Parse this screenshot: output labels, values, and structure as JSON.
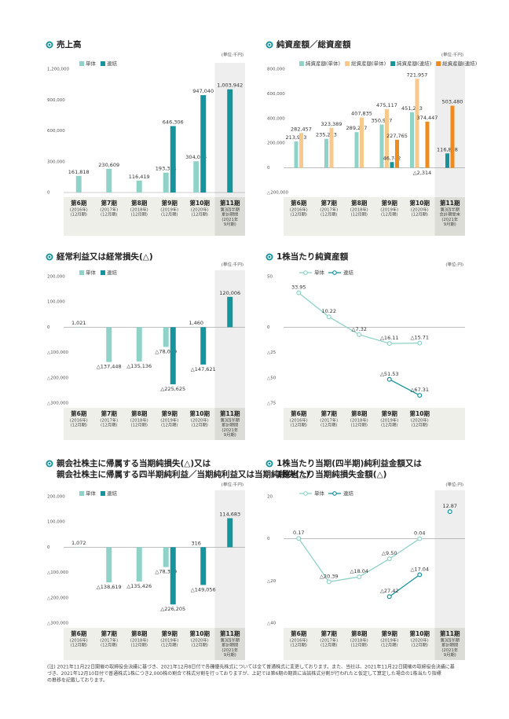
{
  "chart_data": [
    {
      "type": "bar",
      "title": [
        "売上高"
      ],
      "unit": "(単位:千円)",
      "categories": [
        "第6期",
        "第7期",
        "第8期",
        "第9期",
        "第10期",
        "第11期"
      ],
      "category_notes": [
        [
          "(2016年)",
          "(12月期)"
        ],
        [
          "(2017年)",
          "(12月期)"
        ],
        [
          "(2018年)",
          "(12月期)"
        ],
        [
          "(2019年)",
          "(12月期)"
        ],
        [
          "(2020年)",
          "(12月期)"
        ],
        [
          "第3四半期",
          "累計期間",
          "(2021年",
          "9月期)"
        ]
      ],
      "series": [
        {
          "name": "単体",
          "color": "#8fd3c8",
          "values": [
            161818,
            230609,
            116419,
            193354,
            304064,
            null
          ],
          "value_labels": [
            "161,818",
            "230,609",
            "116,419",
            "193,354",
            "304,064",
            null
          ]
        },
        {
          "name": "連結",
          "color": "#17939b",
          "values": [
            null,
            null,
            null,
            646306,
            947040,
            1003942
          ],
          "value_labels": [
            null,
            null,
            null,
            "646,306",
            "947,040",
            "1,003,942"
          ]
        }
      ],
      "ylim": [
        0,
        1200000
      ],
      "yticks": [
        0,
        {
          "value": 300000,
          "label": "300,000"
        },
        {
          "value": 600000,
          "label": "600,000"
        },
        {
          "value": 900000,
          "label": "900,000"
        },
        {
          "value": 1200000,
          "label": "1,200,000"
        }
      ]
    },
    {
      "type": "bar",
      "title": [
        "純資産額／総資産額"
      ],
      "unit": "(単位:千円)",
      "categories": [
        "第6期",
        "第7期",
        "第8期",
        "第9期",
        "第10期",
        "第11期"
      ],
      "category_notes": [
        [
          "(2016年)",
          "(12月期)"
        ],
        [
          "(2017年)",
          "(12月期)"
        ],
        [
          "(2018年)",
          "(12月期)"
        ],
        [
          "(2019年)",
          "(12月期)"
        ],
        [
          "(2020年)",
          "(12月期)"
        ],
        [
          "第3四半期",
          "会計期間末",
          "(2021年",
          "9月期)"
        ]
      ],
      "series": [
        {
          "name": "純資産額(単体)",
          "color": "#8fd3c8",
          "values": [
            213953,
            235233,
            289257,
            350937,
            451253,
            null
          ],
          "value_labels": [
            "213,953",
            "235,233",
            "289,257",
            "350,937",
            "451,253",
            null
          ]
        },
        {
          "name": "総資産額(単体)",
          "color": "#f7c98c",
          "values": [
            282457,
            323389,
            407835,
            475117,
            721957,
            null
          ],
          "value_labels": [
            "282,457",
            "323,389",
            "407,835",
            "475,117",
            "721,957",
            null
          ]
        },
        {
          "name": "純資産額(連結)",
          "color": "#17939b",
          "values": [
            null,
            null,
            null,
            46742,
            -2314,
            116868
          ],
          "value_labels": [
            null,
            null,
            null,
            "46,742",
            "△2,314",
            "116,868"
          ]
        },
        {
          "name": "総資産額(連結)",
          "color": "#ef8a1d",
          "values": [
            null,
            null,
            null,
            227765,
            374447,
            503480
          ],
          "value_labels": [
            null,
            null,
            null,
            "227,765",
            "374,447",
            "503,480"
          ]
        }
      ],
      "ylim": [
        -200000,
        800000
      ],
      "yticks": [
        {
          "value": -200000,
          "label": "△200,000"
        },
        0,
        {
          "value": 200000,
          "label": "200,000"
        },
        {
          "value": 400000,
          "label": "400,000"
        },
        {
          "value": 600000,
          "label": "600,000"
        },
        {
          "value": 800000,
          "label": "800,000"
        }
      ]
    },
    {
      "type": "bar",
      "title": [
        "経常利益又は経常損失(△)"
      ],
      "unit": "(単位:千円)",
      "categories": [
        "第6期",
        "第7期",
        "第8期",
        "第9期",
        "第10期",
        "第11期"
      ],
      "category_notes": [
        [
          "(2016年)",
          "(12月期)"
        ],
        [
          "(2017年)",
          "(12月期)"
        ],
        [
          "(2018年)",
          "(12月期)"
        ],
        [
          "(2019年)",
          "(12月期)"
        ],
        [
          "(2020年)",
          "(12月期)"
        ],
        [
          "第3四半期",
          "累計期間",
          "(2021年",
          "9月期)"
        ]
      ],
      "series": [
        {
          "name": "単体",
          "color": "#8fd3c8",
          "values": [
            1021,
            -137448,
            -135136,
            -78079,
            1460,
            null
          ],
          "value_labels": [
            "1,021",
            "△137,448",
            "△135,136",
            "△78,079",
            "1,460",
            null
          ]
        },
        {
          "name": "連結",
          "color": "#17939b",
          "values": [
            null,
            null,
            null,
            -225625,
            -147621,
            120006
          ],
          "value_labels": [
            null,
            null,
            null,
            "△225,625",
            "△147,621",
            "120,006"
          ]
        }
      ],
      "ylim": [
        -300000,
        200000
      ],
      "yticks": [
        {
          "value": -300000,
          "label": "△300,000"
        },
        {
          "value": -200000,
          "label": "△200,000"
        },
        {
          "value": -100000,
          "label": "△100,000"
        },
        0,
        {
          "value": 100000,
          "label": "100,000"
        },
        {
          "value": 200000,
          "label": "200,000"
        }
      ]
    },
    {
      "type": "line",
      "title": [
        "1株当たり純資産額"
      ],
      "unit": "(単位:円)",
      "categories": [
        "第6期",
        "第7期",
        "第8期",
        "第9期",
        "第10期"
      ],
      "category_notes": [
        [
          "(2016年)",
          "(12月期)"
        ],
        [
          "(2017年)",
          "(12月期)"
        ],
        [
          "(2018年)",
          "(12月期)"
        ],
        [
          "(2019年)",
          "(12月期)"
        ],
        [
          "(2020年)",
          "(12月期)"
        ]
      ],
      "series": [
        {
          "name": "単体",
          "color": "#8fd3c8",
          "values": [
            33.95,
            10.22,
            -7.32,
            -16.11,
            -15.71
          ],
          "value_labels": [
            "33.95",
            "10.22",
            "△7.32",
            "△16.11",
            "△15.71"
          ]
        },
        {
          "name": "連結",
          "color": "#17939b",
          "values": [
            null,
            null,
            null,
            -51.53,
            -67.31
          ],
          "value_labels": [
            null,
            null,
            null,
            "△51.53",
            "△67.31"
          ]
        }
      ],
      "ylim": [
        -75,
        50
      ],
      "yticks": [
        {
          "value": -75,
          "label": "△75"
        },
        {
          "value": -50,
          "label": "△50"
        },
        {
          "value": -25,
          "label": "△25"
        },
        0,
        50
      ]
    },
    {
      "type": "bar",
      "title": [
        "親会社株主に帰属する当期純損失(△)又は",
        "親会社株主に帰属する四半期純利益／当期純利益又は当期純損失(△)"
      ],
      "unit": "(単位:千円)",
      "categories": [
        "第6期",
        "第7期",
        "第8期",
        "第9期",
        "第10期",
        "第11期"
      ],
      "category_notes": [
        [
          "(2016年)",
          "(12月期)"
        ],
        [
          "(2017年)",
          "(12月期)"
        ],
        [
          "(2018年)",
          "(12月期)"
        ],
        [
          "(2019年)",
          "(12月期)"
        ],
        [
          "(2020年)",
          "(12月期)"
        ],
        [
          "第3四半期",
          "累計期間",
          "(2021年",
          "9月期)"
        ]
      ],
      "series": [
        {
          "name": "単体",
          "color": "#8fd3c8",
          "values": [
            1072,
            -138619,
            -135426,
            -78369,
            316,
            null
          ],
          "value_labels": [
            "1,072",
            "△138,619",
            "△135,426",
            "△78,369",
            "316",
            null
          ]
        },
        {
          "name": "連結",
          "color": "#17939b",
          "values": [
            null,
            null,
            null,
            -226205,
            -149056,
            114683
          ],
          "value_labels": [
            null,
            null,
            null,
            "△226,205",
            "△149,056",
            "114,683"
          ]
        }
      ],
      "ylim": [
        -300000,
        200000
      ],
      "yticks": [
        {
          "value": -300000,
          "label": "△300,000"
        },
        {
          "value": -200000,
          "label": "△200,000"
        },
        {
          "value": -100000,
          "label": "△100,000"
        },
        0,
        {
          "value": 100000,
          "label": "100,000"
        },
        {
          "value": 200000,
          "label": "200,000"
        }
      ]
    },
    {
      "type": "line",
      "title": [
        "1株当たり当期(四半期)純利益金額又は",
        "1株当たり当期純損失金額(△)"
      ],
      "unit": "(単位:円)",
      "categories": [
        "第6期",
        "第7期",
        "第8期",
        "第9期",
        "第10期",
        "第11期"
      ],
      "category_notes": [
        [
          "(2016年)",
          "(12月期)"
        ],
        [
          "(2017年)",
          "(12月期)"
        ],
        [
          "(2018年)",
          "(12月期)"
        ],
        [
          "(2019年)",
          "(12月期)"
        ],
        [
          "(2020年)",
          "(12月期)"
        ],
        [
          "第3四半期",
          "累計期間",
          "(2021年",
          "9月期)"
        ]
      ],
      "series": [
        {
          "name": "単体",
          "color": "#8fd3c8",
          "values": [
            0.17,
            -20.39,
            -18.04,
            -9.5,
            0.04,
            null
          ],
          "value_labels": [
            "0.17",
            "△20.39",
            "△18.04",
            "△9.50",
            "0.04",
            null
          ]
        },
        {
          "name": "連結",
          "color": "#17939b",
          "values": [
            null,
            null,
            null,
            -27.42,
            -17.04,
            12.87
          ],
          "value_labels": [
            null,
            null,
            null,
            "△27.42",
            "△17.04",
            "12.87"
          ],
          "breaks": [
            5
          ]
        }
      ],
      "ylim": [
        -40,
        20
      ],
      "yticks": [
        {
          "value": -40,
          "label": "△40"
        },
        {
          "value": -20,
          "label": "△20"
        },
        0,
        20
      ]
    }
  ],
  "footnote": [
    "(注) 2021年11月22日開催の取締役会決議に基づき、2021年12月8日付で各種優先株式については全て普通株式に変更しております。また、当社は、2021年11月22日開催の取締役会決議に基",
    "づき、2021年12月10日付で普通株式1株につき2,000株の割合で株式分割を行っておりますが、上記では第6期の期首に当該株式分割が行われたと仮定して算定した場合の1株当たり指標",
    "の推移を記載しております。"
  ]
}
